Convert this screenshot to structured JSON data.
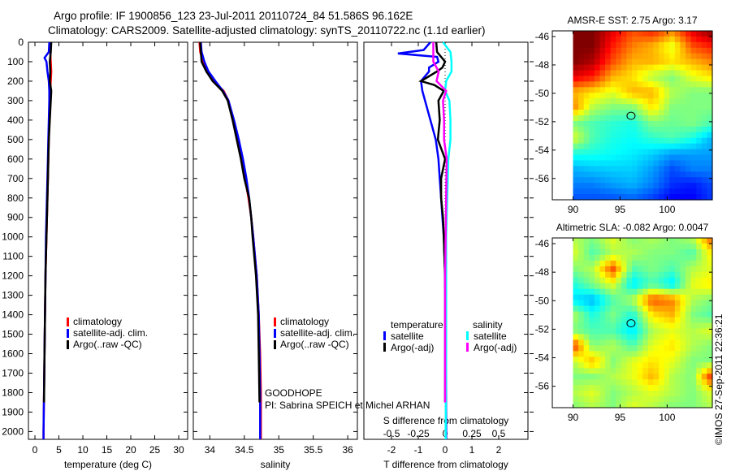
{
  "title_line1": "Argo profile: IF 1900856_123 23-Jul-2011 20110724_84 51.586S 96.162E",
  "title_line2": "Climatology: CARS2009. Satellite-adjusted climatology: synTS_20110722.nc (1.1d earlier)",
  "credit": "GOODHOPE",
  "pi": "PI: Sabrina SPEICH et Michel ARHAN",
  "timestamp": "©IMOS 27-Sep-2011 22:36:21",
  "colors": {
    "climatology": "#ff0000",
    "satellite": "#0000ff",
    "argo": "#000000",
    "sal_satellite": "#00ffff",
    "sal_argo": "#ff00ff"
  },
  "chart_data": [
    {
      "type": "line",
      "id": "temperature",
      "xlabel": "temperature (deg C)",
      "ylabel": "",
      "xlim": [
        -1.36,
        31.86
      ],
      "ylim": [
        2040,
        0
      ],
      "xticks": [
        0,
        5,
        10,
        15,
        20,
        25,
        30
      ],
      "yticks": [
        0,
        100,
        200,
        300,
        400,
        500,
        600,
        700,
        800,
        900,
        1000,
        1100,
        1200,
        1300,
        1400,
        1500,
        1600,
        1700,
        1800,
        1900,
        2000
      ],
      "legend": {
        "placement": "middle-left",
        "entries": [
          "climatology",
          "satellite-adj. clim.",
          "Argo(..raw -QC)"
        ]
      },
      "series": [
        {
          "name": "climatology",
          "color": "#ff0000",
          "depth": [
            0,
            50,
            100,
            150,
            200,
            250,
            300,
            400,
            500,
            600,
            700,
            800,
            900,
            1000,
            1200,
            1400,
            1600,
            1800,
            2000,
            2040
          ],
          "values": [
            3.3,
            3.2,
            3.3,
            3.4,
            3.3,
            3.2,
            3.2,
            3.0,
            2.9,
            2.8,
            2.7,
            2.6,
            2.5,
            2.4,
            2.2,
            2.1,
            2.0,
            1.9,
            1.8,
            1.8
          ]
        },
        {
          "name": "satellite-adj. clim.",
          "color": "#0000ff",
          "depth": [
            0,
            50,
            80,
            100,
            150,
            200,
            250,
            300,
            400,
            500,
            600,
            700,
            800,
            900,
            1000,
            1200,
            1400,
            1600,
            1800,
            2000,
            2040
          ],
          "values": [
            3.0,
            2.9,
            2.0,
            2.4,
            2.6,
            2.9,
            3.0,
            3.0,
            2.9,
            2.8,
            2.7,
            2.6,
            2.5,
            2.4,
            2.3,
            2.2,
            2.1,
            2.0,
            1.9,
            1.8,
            1.8
          ]
        },
        {
          "name": "Argo(..raw -QC)",
          "color": "#000000",
          "depth": [
            0,
            50,
            100,
            150,
            200,
            250,
            300,
            400,
            500,
            600,
            700,
            800,
            900,
            1000,
            1200,
            1400,
            1600,
            1850
          ],
          "values": [
            3.4,
            3.3,
            3.1,
            3.2,
            3.1,
            3.4,
            3.3,
            3.1,
            2.9,
            2.8,
            2.7,
            2.6,
            2.5,
            2.4,
            2.2,
            2.1,
            2.0,
            1.9
          ]
        }
      ]
    },
    {
      "type": "line",
      "id": "salinity",
      "xlabel": "salinity",
      "ylabel": "",
      "xlim": [
        33.76,
        36.14
      ],
      "ylim": [
        2040,
        0
      ],
      "xticks": [
        34,
        34.5,
        35,
        35.5,
        36
      ],
      "legend": {
        "placement": "middle-center",
        "entries": [
          "climatology",
          "satellite-adj. clim.",
          "Argo(..raw -QC)"
        ]
      },
      "series": [
        {
          "name": "climatology",
          "color": "#ff0000",
          "depth": [
            0,
            50,
            100,
            150,
            200,
            250,
            300,
            400,
            500,
            600,
            700,
            800,
            900,
            1000,
            1200,
            1400,
            1600,
            1800,
            2000,
            2040
          ],
          "values": [
            33.85,
            33.86,
            33.9,
            33.95,
            34.05,
            34.2,
            34.27,
            34.34,
            34.4,
            34.46,
            34.51,
            34.56,
            34.6,
            34.63,
            34.68,
            34.71,
            34.73,
            34.74,
            34.74,
            34.74
          ]
        },
        {
          "name": "satellite-adj. clim.",
          "color": "#0000ff",
          "depth": [
            0,
            50,
            100,
            150,
            200,
            250,
            300,
            400,
            500,
            600,
            700,
            800,
            900,
            1000,
            1200,
            1400,
            1600,
            1800,
            2000,
            2040
          ],
          "values": [
            33.87,
            33.88,
            33.92,
            33.98,
            34.08,
            34.19,
            34.27,
            34.35,
            34.42,
            34.48,
            34.53,
            34.57,
            34.6,
            34.63,
            34.68,
            34.71,
            34.72,
            34.73,
            34.73,
            34.73
          ]
        },
        {
          "name": "Argo(..raw -QC)",
          "color": "#000000",
          "depth": [
            0,
            50,
            100,
            150,
            200,
            250,
            300,
            400,
            500,
            600,
            700,
            800,
            900,
            1000,
            1200,
            1400,
            1600,
            1850
          ],
          "values": [
            33.86,
            33.87,
            33.88,
            33.95,
            34.04,
            34.18,
            34.26,
            34.33,
            34.39,
            34.45,
            34.5,
            34.57,
            34.6,
            34.62,
            34.67,
            34.7,
            34.71,
            34.72
          ]
        }
      ]
    },
    {
      "type": "line",
      "id": "differences",
      "xlabel": "T difference from climatology",
      "x2label": "S difference from climatology",
      "xlim": [
        -3.03,
        3.09
      ],
      "x2lim": [
        -0.758,
        0.773
      ],
      "ylim": [
        2040,
        0
      ],
      "xticks": [
        -2,
        -1,
        0,
        1,
        2
      ],
      "x2ticks": [
        -0.5,
        -0.25,
        0,
        0.25,
        0.5
      ],
      "x2ticklabels": [
        "-0.5",
        "-0.25",
        "0",
        "0.25",
        "0.5"
      ],
      "legend": {
        "placement": "middle",
        "temperature_heading": "temperature",
        "salinity_heading": "salinity",
        "entries": [
          "satellite",
          "Argo(-adj)",
          "satellite",
          "Argo(-adj)"
        ]
      },
      "series": [
        {
          "name": "T satellite",
          "axis": "T",
          "color": "#0000ff",
          "depth": [
            0,
            40,
            58,
            75,
            100,
            130,
            150,
            200,
            250,
            300,
            400,
            500,
            600,
            700,
            800,
            900,
            1000,
            1200,
            1600,
            2000,
            2040
          ],
          "values": [
            -0.55,
            -0.8,
            -1.76,
            -0.3,
            -0.25,
            -0.6,
            -0.6,
            -0.9,
            -0.85,
            -0.75,
            -0.55,
            -0.35,
            -0.25,
            -0.2,
            -0.15,
            -0.1,
            -0.05,
            0,
            0.03,
            0.04,
            0.04
          ]
        },
        {
          "name": "T Argo(-adj)",
          "axis": "T",
          "color": "#000000",
          "depth": [
            0,
            50,
            100,
            130,
            150,
            200,
            220,
            250,
            300,
            400,
            500,
            600,
            700,
            800,
            900,
            1000,
            1200,
            1600,
            1850
          ],
          "values": [
            -0.33,
            -0.3,
            0,
            -0.1,
            -0.3,
            -0.9,
            -0.4,
            -0.05,
            -0.25,
            -0.2,
            -0.27,
            0,
            -0.15,
            -0.15,
            -0.08,
            -0.05,
            0,
            0,
            0
          ]
        },
        {
          "name": "S satellite",
          "axis": "S",
          "color": "#00ffff",
          "depth": [
            0,
            50,
            100,
            150,
            200,
            250,
            300,
            400,
            500,
            600,
            800,
            1000,
            1200,
            1600,
            2000,
            2040
          ],
          "values": [
            -0.02,
            0.05,
            0.06,
            0.06,
            0.01,
            0,
            0.04,
            0.05,
            0.05,
            0.03,
            0.02,
            0.01,
            0.01,
            0.01,
            0.005,
            0.005
          ]
        },
        {
          "name": "S Argo(-adj)",
          "axis": "S",
          "color": "#ff00ff",
          "depth": [
            0,
            50,
            100,
            150,
            200,
            250,
            300,
            400,
            500,
            600,
            800,
            1000,
            1200,
            1600,
            1850
          ],
          "values": [
            -0.11,
            -0.11,
            -0.11,
            -0.06,
            -0.08,
            0.01,
            -0.02,
            -0.01,
            -0.01,
            0.015,
            0.01,
            0.005,
            0,
            0,
            0
          ]
        }
      ]
    },
    {
      "type": "heatmap",
      "id": "sst-map",
      "title": "AMSR-E SST: 2.75 Argo: 3.17",
      "xlim": [
        87.8,
        104.8
      ],
      "ylim": [
        -57.5,
        -45.6
      ],
      "xticks": [
        90,
        95,
        100
      ],
      "yticks": [
        -46,
        -48,
        -50,
        -52,
        -54,
        -56
      ],
      "data_extent": {
        "lon": [
          90,
          104.5
        ],
        "lat": [
          -46,
          -57.5
        ]
      },
      "marker": {
        "lon": 96.162,
        "lat": -51.586
      },
      "grid_note": "normalized colormap index 0-1 (jet)",
      "grid": [
        [
          1,
          1,
          0.9,
          0.8,
          0.85,
          0.75,
          0.9,
          1
        ],
        [
          1,
          1,
          0.85,
          0.75,
          0.7,
          0.6,
          0.8,
          0.85
        ],
        [
          1,
          0.95,
          0.8,
          0.7,
          0.7,
          0.65,
          0.7,
          0.75
        ],
        [
          0.9,
          0.85,
          0.7,
          0.65,
          0.55,
          0.5,
          0.6,
          0.65
        ],
        [
          0.7,
          0.65,
          0.6,
          0.7,
          0.7,
          0.55,
          0.5,
          0.5
        ],
        [
          0.75,
          0.55,
          0.5,
          0.5,
          0.65,
          0.5,
          0.5,
          0.5
        ],
        [
          0.5,
          0.45,
          0.42,
          0.4,
          0.5,
          0.48,
          0.5,
          0.45
        ],
        [
          0.6,
          0.45,
          0.4,
          0.38,
          0.42,
          0.45,
          0.4,
          0.3
        ],
        [
          0.4,
          0.4,
          0.38,
          0.36,
          0.33,
          0.28,
          0.28,
          0.28
        ],
        [
          0.3,
          0.32,
          0.33,
          0.33,
          0.28,
          0.2,
          0.25,
          0.25
        ],
        [
          0.25,
          0.25,
          0.28,
          0.3,
          0.25,
          0.17,
          0.15,
          0.2
        ],
        [
          0.2,
          0.2,
          0.2,
          0.22,
          0.18,
          0.12,
          0.12,
          0.18
        ]
      ]
    },
    {
      "type": "heatmap",
      "id": "sla-map",
      "title": "Altimetric SLA: -0.082 Argo: 0.0047",
      "xlim": [
        87.8,
        104.8
      ],
      "ylim": [
        -57.5,
        -45.6
      ],
      "xticks": [
        90,
        95,
        100
      ],
      "yticks": [
        -46,
        -48,
        -50,
        -52,
        -54,
        -56
      ],
      "data_extent": {
        "lon": [
          90,
          104.5
        ],
        "lat": [
          -46,
          -57.5
        ]
      },
      "marker": {
        "lon": 96.162,
        "lat": -51.586
      },
      "grid_note": "normalized colormap index 0-1 (jet)",
      "grid": [
        [
          0.55,
          0.5,
          0.6,
          0.5,
          0.55,
          0.5,
          0.55,
          0.8
        ],
        [
          0.6,
          0.45,
          0.55,
          0.55,
          0.5,
          0.5,
          0.45,
          0.65
        ],
        [
          0.5,
          0.55,
          0.8,
          0.45,
          0.5,
          0.45,
          0.55,
          0.6
        ],
        [
          0.4,
          0.5,
          0.6,
          0.35,
          0.45,
          0.35,
          0.6,
          0.65
        ],
        [
          0.35,
          0.3,
          0.45,
          0.55,
          0.8,
          0.75,
          0.55,
          0.5
        ],
        [
          0.55,
          0.4,
          0.5,
          0.4,
          0.65,
          0.7,
          0.5,
          0.45
        ],
        [
          0.5,
          0.45,
          0.45,
          0.35,
          0.55,
          0.6,
          0.55,
          0.6
        ],
        [
          0.85,
          0.5,
          0.55,
          0.45,
          0.6,
          0.65,
          0.55,
          0.5
        ],
        [
          0.55,
          0.7,
          0.5,
          0.6,
          0.65,
          0.6,
          0.5,
          0.5
        ],
        [
          0.5,
          0.5,
          0.55,
          0.6,
          0.7,
          0.55,
          0.5,
          0.85
        ],
        [
          0.55,
          0.6,
          0.5,
          0.55,
          0.6,
          0.55,
          0.5,
          0.6
        ],
        [
          0.5,
          0.55,
          0.5,
          0.6,
          0.55,
          0.5,
          0.5,
          0.55
        ]
      ]
    }
  ]
}
